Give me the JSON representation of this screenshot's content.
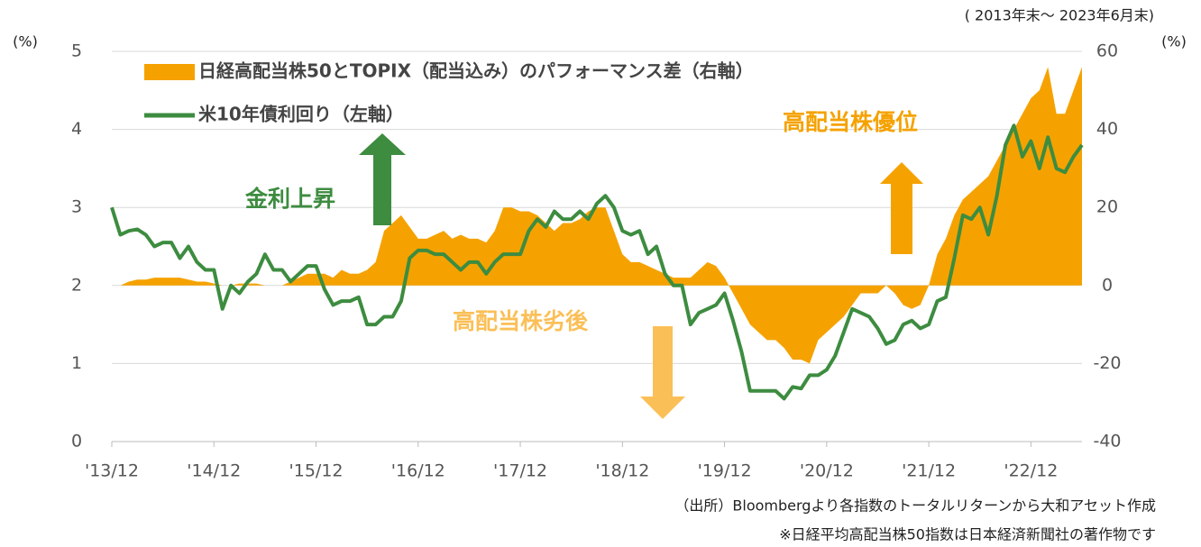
{
  "chart_data": {
    "type": "line",
    "date_range": "( 2013年末～ 2023年6月末)",
    "y_unit": "(%)",
    "y2_unit": "(%)",
    "annotations": [
      "金利上昇",
      "高配当株劣後",
      "高配当株優位"
    ],
    "footnotes": [
      "（出所）Bloombergより各指数のトータルリターンから大和アセット作成",
      "※日経平均高配当株50指数は日本経済新聞社の著作物です"
    ],
    "categories": [
      "'13/12",
      null,
      null,
      null,
      null,
      null,
      null,
      null,
      null,
      null,
      null,
      null,
      "'14/12",
      null,
      null,
      null,
      null,
      null,
      null,
      null,
      null,
      null,
      null,
      null,
      "'15/12",
      null,
      null,
      null,
      null,
      null,
      null,
      null,
      null,
      null,
      null,
      null,
      "'16/12",
      null,
      null,
      null,
      null,
      null,
      null,
      null,
      null,
      null,
      null,
      null,
      "'17/12",
      null,
      null,
      null,
      null,
      null,
      null,
      null,
      null,
      null,
      null,
      null,
      "'18/12",
      null,
      null,
      null,
      null,
      null,
      null,
      null,
      null,
      null,
      null,
      null,
      "'19/12",
      null,
      null,
      null,
      null,
      null,
      null,
      null,
      null,
      null,
      null,
      null,
      "'20/12",
      null,
      null,
      null,
      null,
      null,
      null,
      null,
      null,
      null,
      null,
      null,
      "'21/12",
      null,
      null,
      null,
      null,
      null,
      null,
      null,
      null,
      null,
      null,
      null,
      "'22/12",
      null,
      null,
      null,
      null,
      null,
      null
    ],
    "series": [
      {
        "name": "日経高配当株50とTOPIX（配当込み）のパフォーマンス差（右軸）",
        "color": "#f5a200",
        "type": "area",
        "axis": "y2",
        "values": [
          0,
          0,
          1,
          1.5,
          1.5,
          2,
          2,
          2,
          2,
          1.5,
          1,
          1,
          0.5,
          0,
          0,
          0.5,
          0.5,
          0.5,
          0,
          0,
          0,
          1,
          2,
          3,
          3,
          3,
          2,
          4,
          3,
          3,
          4,
          6,
          14,
          16,
          18,
          15,
          12,
          12,
          13,
          14,
          12,
          13,
          12,
          12,
          11,
          14,
          20,
          20,
          19,
          19,
          18,
          16,
          14,
          16,
          16,
          17,
          19,
          20,
          20,
          14,
          8,
          6,
          6,
          5,
          4,
          3,
          2,
          2,
          2,
          4,
          6,
          5,
          2,
          -2,
          -6,
          -10,
          -12,
          -14,
          -14,
          -16,
          -19,
          -19,
          -20,
          -14,
          -12,
          -10,
          -8,
          -5,
          -2,
          -2,
          -2,
          0,
          -2,
          -5,
          -6,
          -5,
          0,
          8,
          12,
          18,
          22,
          24,
          26,
          28,
          32,
          36,
          40,
          44,
          48,
          50,
          56,
          44,
          44,
          50,
          56
        ]
      },
      {
        "name": "米10年債利回り（左軸）",
        "color": "#3d8c40",
        "type": "line",
        "values": [
          3.0,
          2.65,
          2.7,
          2.72,
          2.65,
          2.5,
          2.55,
          2.55,
          2.35,
          2.5,
          2.3,
          2.2,
          2.2,
          1.7,
          2.0,
          1.9,
          2.05,
          2.15,
          2.4,
          2.2,
          2.2,
          2.05,
          2.15,
          2.25,
          2.25,
          1.95,
          1.75,
          1.8,
          1.8,
          1.85,
          1.5,
          1.5,
          1.6,
          1.6,
          1.8,
          2.35,
          2.45,
          2.45,
          2.4,
          2.4,
          2.3,
          2.2,
          2.3,
          2.3,
          2.15,
          2.3,
          2.4,
          2.4,
          2.4,
          2.7,
          2.85,
          2.75,
          2.95,
          2.85,
          2.85,
          2.95,
          2.85,
          3.05,
          3.15,
          3.0,
          2.7,
          2.65,
          2.7,
          2.4,
          2.5,
          2.15,
          2.0,
          2.0,
          1.5,
          1.65,
          1.7,
          1.75,
          1.9,
          1.55,
          1.15,
          0.65,
          0.65,
          0.65,
          0.65,
          0.55,
          0.7,
          0.68,
          0.85,
          0.85,
          0.92,
          1.1,
          1.4,
          1.7,
          1.65,
          1.6,
          1.45,
          1.25,
          1.3,
          1.5,
          1.55,
          1.45,
          1.5,
          1.8,
          1.85,
          2.35,
          2.9,
          2.85,
          3.0,
          2.65,
          3.15,
          3.8,
          4.05,
          3.65,
          3.85,
          3.5,
          3.9,
          3.5,
          3.45,
          3.65,
          3.8
        ]
      }
    ],
    "ylim": [
      0,
      5
    ],
    "yticks": [
      0,
      1,
      2,
      3,
      4,
      5
    ],
    "y2lim": [
      -40,
      60
    ],
    "y2ticks": [
      -40,
      -20,
      0,
      20,
      40,
      60
    ]
  }
}
